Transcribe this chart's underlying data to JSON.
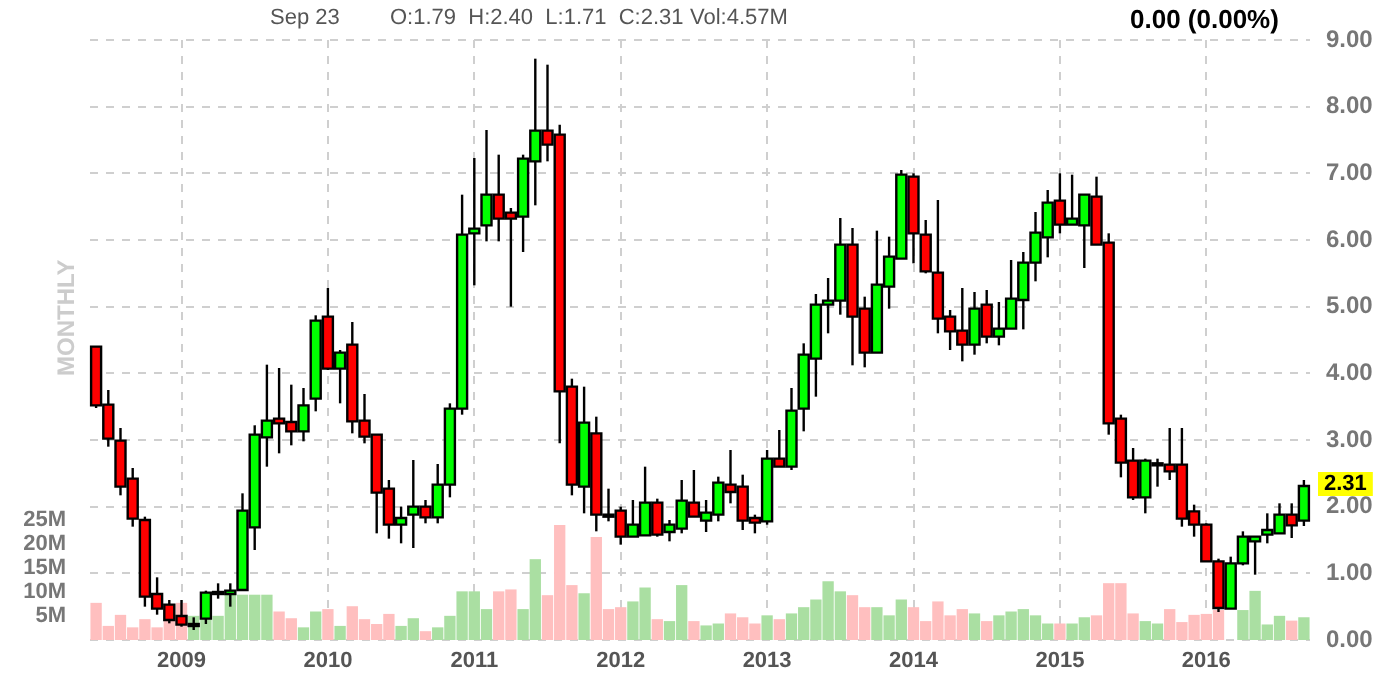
{
  "chart_data": {
    "type": "candlestick",
    "categories": [
      null,
      null,
      null,
      null,
      null,
      null,
      null,
      "2009",
      null,
      null,
      null,
      null,
      null,
      null,
      null,
      null,
      null,
      null,
      null,
      "2010",
      null,
      null,
      null,
      null,
      null,
      null,
      null,
      null,
      null,
      null,
      null,
      "2011",
      null,
      null,
      null,
      null,
      null,
      null,
      null,
      null,
      null,
      null,
      null,
      "2012",
      null,
      null,
      null,
      null,
      null,
      null,
      null,
      null,
      null,
      null,
      null,
      "2013",
      null,
      null,
      null,
      null,
      null,
      null,
      null,
      null,
      null,
      null,
      null,
      "2014",
      null,
      null,
      null,
      null,
      null,
      null,
      null,
      null,
      null,
      null,
      null,
      "2015",
      null,
      null,
      null,
      null,
      null,
      null,
      null,
      null,
      null,
      null,
      null,
      "2016",
      null,
      null,
      null,
      null,
      null,
      null,
      null,
      null
    ],
    "ohlc": [
      [
        4.4,
        4.4,
        3.48,
        3.52
      ],
      [
        3.53,
        3.75,
        2.9,
        3.02
      ],
      [
        2.99,
        3.18,
        2.17,
        2.3
      ],
      [
        2.42,
        2.58,
        1.7,
        1.82
      ],
      [
        1.8,
        1.85,
        0.5,
        0.65
      ],
      [
        0.69,
        0.94,
        0.38,
        0.47
      ],
      [
        0.53,
        0.6,
        0.25,
        0.3
      ],
      [
        0.36,
        0.6,
        0.2,
        0.23
      ],
      [
        0.24,
        0.34,
        0.15,
        0.24
      ],
      [
        0.32,
        0.74,
        0.24,
        0.71
      ],
      [
        0.71,
        0.85,
        0.62,
        0.72
      ],
      [
        0.69,
        0.85,
        0.5,
        0.74
      ],
      [
        0.75,
        2.2,
        0.74,
        1.94
      ],
      [
        1.69,
        3.22,
        1.35,
        3.08
      ],
      [
        3.04,
        4.13,
        2.6,
        3.29
      ],
      [
        3.32,
        4.08,
        2.8,
        3.25
      ],
      [
        3.27,
        3.83,
        2.92,
        3.13
      ],
      [
        3.13,
        3.78,
        2.98,
        3.52
      ],
      [
        3.62,
        4.87,
        3.43,
        4.79
      ],
      [
        4.85,
        5.28,
        4.05,
        4.07
      ],
      [
        4.07,
        4.35,
        3.55,
        4.31
      ],
      [
        4.43,
        4.77,
        3.1,
        3.28
      ],
      [
        3.29,
        3.69,
        2.95,
        3.05
      ],
      [
        3.08,
        3.08,
        1.6,
        2.21
      ],
      [
        2.27,
        2.4,
        1.52,
        1.73
      ],
      [
        1.73,
        2.0,
        1.45,
        1.83
      ],
      [
        1.88,
        2.7,
        1.38,
        2.0
      ],
      [
        2.0,
        2.1,
        1.75,
        1.84
      ],
      [
        1.84,
        2.64,
        1.75,
        2.33
      ],
      [
        2.33,
        3.55,
        2.14,
        3.47
      ],
      [
        3.47,
        6.68,
        3.38,
        6.08
      ],
      [
        6.1,
        7.23,
        5.32,
        6.17
      ],
      [
        6.22,
        7.65,
        5.98,
        6.68
      ],
      [
        6.68,
        7.28,
        5.98,
        6.32
      ],
      [
        6.41,
        6.48,
        5.0,
        6.32
      ],
      [
        6.35,
        7.28,
        5.82,
        7.22
      ],
      [
        7.18,
        8.72,
        6.52,
        7.64
      ],
      [
        7.64,
        8.63,
        7.18,
        7.43
      ],
      [
        7.58,
        7.73,
        2.95,
        3.73
      ],
      [
        3.8,
        3.92,
        2.17,
        2.33
      ],
      [
        2.3,
        3.8,
        1.9,
        3.26
      ],
      [
        3.1,
        3.35,
        1.63,
        1.88
      ],
      [
        1.88,
        2.27,
        1.78,
        1.87
      ],
      [
        1.94,
        2.0,
        1.43,
        1.55
      ],
      [
        1.55,
        2.1,
        1.55,
        1.73
      ],
      [
        1.57,
        2.6,
        1.57,
        2.06
      ],
      [
        2.06,
        2.12,
        1.55,
        1.58
      ],
      [
        1.62,
        1.8,
        1.48,
        1.73
      ],
      [
        1.67,
        2.4,
        1.6,
        2.09
      ],
      [
        2.06,
        2.55,
        1.85,
        1.85
      ],
      [
        1.79,
        2.1,
        1.62,
        1.91
      ],
      [
        1.88,
        2.45,
        1.78,
        2.36
      ],
      [
        2.33,
        2.85,
        2.05,
        2.22
      ],
      [
        2.3,
        2.48,
        1.65,
        1.79
      ],
      [
        1.83,
        1.88,
        1.6,
        1.76
      ],
      [
        1.78,
        2.85,
        1.73,
        2.72
      ],
      [
        2.72,
        3.15,
        2.6,
        2.6
      ],
      [
        2.6,
        3.78,
        2.55,
        3.44
      ],
      [
        3.47,
        4.45,
        3.13,
        4.28
      ],
      [
        4.22,
        5.19,
        3.65,
        5.03
      ],
      [
        5.03,
        5.43,
        4.6,
        5.09
      ],
      [
        5.09,
        6.33,
        4.88,
        5.93
      ],
      [
        5.93,
        6.18,
        4.12,
        4.85
      ],
      [
        4.97,
        5.15,
        4.09,
        4.31
      ],
      [
        4.31,
        6.14,
        4.31,
        5.33
      ],
      [
        5.3,
        6.05,
        4.97,
        5.75
      ],
      [
        5.72,
        7.05,
        5.72,
        6.98
      ],
      [
        6.95,
        7.0,
        5.65,
        6.1
      ],
      [
        6.08,
        6.3,
        5.5,
        5.53
      ],
      [
        5.51,
        6.6,
        4.6,
        4.82
      ],
      [
        4.85,
        4.95,
        4.35,
        4.63
      ],
      [
        4.64,
        5.28,
        4.18,
        4.43
      ],
      [
        4.43,
        5.22,
        4.28,
        4.97
      ],
      [
        5.03,
        5.25,
        4.45,
        4.55
      ],
      [
        4.55,
        5.07,
        4.42,
        4.67
      ],
      [
        4.67,
        5.7,
        4.67,
        5.12
      ],
      [
        5.1,
        5.82,
        4.66,
        5.66
      ],
      [
        5.66,
        6.42,
        5.38,
        6.11
      ],
      [
        6.04,
        6.75,
        5.74,
        6.56
      ],
      [
        6.59,
        7.0,
        6.1,
        6.23
      ],
      [
        6.23,
        6.98,
        6.23,
        6.32
      ],
      [
        6.22,
        6.68,
        5.58,
        6.68
      ],
      [
        6.65,
        6.95,
        5.93,
        5.93
      ],
      [
        5.96,
        6.1,
        3.08,
        3.25
      ],
      [
        3.32,
        3.38,
        2.44,
        2.66
      ],
      [
        2.69,
        2.88,
        2.1,
        2.14
      ],
      [
        2.14,
        2.72,
        1.9,
        2.69
      ],
      [
        2.63,
        2.72,
        2.3,
        2.65
      ],
      [
        2.63,
        3.18,
        2.4,
        2.53
      ],
      [
        2.63,
        3.18,
        1.7,
        1.82
      ],
      [
        1.93,
        2.03,
        1.55,
        1.73
      ],
      [
        1.73,
        1.75,
        1.18,
        1.18
      ],
      [
        1.18,
        1.22,
        0.42,
        0.48
      ],
      [
        0.47,
        1.25,
        0.47,
        1.15
      ],
      [
        1.15,
        1.63,
        1.12,
        1.55
      ],
      [
        1.48,
        1.55,
        0.98,
        1.55
      ],
      [
        1.58,
        1.9,
        1.45,
        1.65
      ],
      [
        1.6,
        2.05,
        1.6,
        1.88
      ],
      [
        1.88,
        2.05,
        1.53,
        1.72
      ],
      [
        1.79,
        2.4,
        1.71,
        2.31
      ]
    ],
    "colors": [
      "#ff0000",
      "#ff0000",
      "#ff0000",
      "#ff0000",
      "#ff0000",
      "#ff0000",
      "#ff0000",
      "#ff0000",
      "#00ff00",
      "#00ff00",
      "#00ff00",
      "#00ff00",
      "#00ff00",
      "#00ff00",
      "#00ff00",
      "#ff0000",
      "#ff0000",
      "#00ff00",
      "#00ff00",
      "#ff0000",
      "#00ff00",
      "#ff0000",
      "#ff0000",
      "#ff0000",
      "#ff0000",
      "#00ff00",
      "#00ff00",
      "#ff0000",
      "#00ff00",
      "#00ff00",
      "#00ff00",
      "#00ff00",
      "#00ff00",
      "#ff0000",
      "#ff0000",
      "#00ff00",
      "#00ff00",
      "#ff0000",
      "#ff0000",
      "#ff0000",
      "#00ff00",
      "#ff0000",
      "#ff0000",
      "#ff0000",
      "#00ff00",
      "#00ff00",
      "#ff0000",
      "#00ff00",
      "#00ff00",
      "#ff0000",
      "#00ff00",
      "#00ff00",
      "#ff0000",
      "#ff0000",
      "#ff0000",
      "#00ff00",
      "#ff0000",
      "#00ff00",
      "#00ff00",
      "#00ff00",
      "#00ff00",
      "#00ff00",
      "#ff0000",
      "#ff0000",
      "#00ff00",
      "#00ff00",
      "#00ff00",
      "#ff0000",
      "#ff0000",
      "#ff0000",
      "#ff0000",
      "#ff0000",
      "#00ff00",
      "#ff0000",
      "#00ff00",
      "#00ff00",
      "#00ff00",
      "#00ff00",
      "#00ff00",
      "#ff0000",
      "#00ff00",
      "#00ff00",
      "#ff0000",
      "#ff0000",
      "#ff0000",
      "#ff0000",
      "#00ff00",
      "#00ff00",
      "#ff0000",
      "#ff0000",
      "#ff0000",
      "#ff0000",
      "#ff0000",
      "#00ff00",
      "#00ff00",
      "#00ff00",
      "#00ff00",
      "#00ff00",
      "#ff0000",
      "#00ff00"
    ],
    "series": [
      {
        "type": "bar",
        "axis": "y2",
        "values": [
          7.6,
          2.8,
          5.1,
          2.5,
          4.2,
          2.5,
          4.2,
          7.6,
          4.9,
          5.3,
          4.9,
          10,
          9.3,
          9.3,
          9.3,
          5.8,
          4.4,
          2.5,
          5.8,
          6.3,
          2.8,
          6.9,
          4.2,
          3.2,
          5.3,
          2.8,
          4.4,
          1.7,
          2.5,
          4.9,
          10,
          10,
          6.3,
          10,
          10.4,
          6.3,
          16.7,
          9.2,
          23.8,
          11.3,
          9.6,
          21.3,
          6.3,
          6.7,
          7.9,
          10.8,
          4.2,
          3.8,
          11.3,
          3.8,
          2.9,
          3.3,
          5.4,
          4.6,
          3.3,
          5.0,
          4.2,
          5.4,
          6.7,
          8.3,
          12.1,
          10,
          9.2,
          6.7,
          6.7,
          5.0,
          8.3,
          6.7,
          3.8,
          7.9,
          5.0,
          6.3,
          5.4,
          3.8,
          5.0,
          5.8,
          6.3,
          5.0,
          3.3,
          3.3,
          3.3,
          4.6,
          5.0,
          11.7,
          11.7,
          5.4,
          3.8,
          3.3,
          6.3,
          3.6,
          5.1,
          5.3,
          6.1,
          null,
          6.1,
          10.1,
          3.1,
          4.9,
          3.9,
          4.6
        ],
        "colors": [
          "#ffbfbf",
          "#ffbfbf",
          "#ffbfbf",
          "#ffbfbf",
          "#ffbfbf",
          "#ffbfbf",
          "#ffbfbf",
          "#ffbfbf",
          "#aadfa2",
          "#aadfa2",
          "#aadfa2",
          "#aadfa2",
          "#aadfa2",
          "#aadfa2",
          "#aadfa2",
          "#ffbfbf",
          "#ffbfbf",
          "#aadfa2",
          "#aadfa2",
          "#ffbfbf",
          "#aadfa2",
          "#ffbfbf",
          "#ffbfbf",
          "#ffbfbf",
          "#ffbfbf",
          "#aadfa2",
          "#aadfa2",
          "#ffbfbf",
          "#aadfa2",
          "#aadfa2",
          "#aadfa2",
          "#aadfa2",
          "#aadfa2",
          "#ffbfbf",
          "#ffbfbf",
          "#aadfa2",
          "#aadfa2",
          "#ffbfbf",
          "#ffbfbf",
          "#ffbfbf",
          "#aadfa2",
          "#ffbfbf",
          "#ffbfbf",
          "#ffbfbf",
          "#aadfa2",
          "#aadfa2",
          "#ffbfbf",
          "#aadfa2",
          "#aadfa2",
          "#ffbfbf",
          "#aadfa2",
          "#aadfa2",
          "#ffbfbf",
          "#ffbfbf",
          "#ffbfbf",
          "#aadfa2",
          "#ffbfbf",
          "#aadfa2",
          "#aadfa2",
          "#aadfa2",
          "#aadfa2",
          "#aadfa2",
          "#ffbfbf",
          "#ffbfbf",
          "#aadfa2",
          "#aadfa2",
          "#aadfa2",
          "#ffbfbf",
          "#ffbfbf",
          "#ffbfbf",
          "#ffbfbf",
          "#ffbfbf",
          "#aadfa2",
          "#ffbfbf",
          "#aadfa2",
          "#aadfa2",
          "#aadfa2",
          "#aadfa2",
          "#aadfa2",
          "#ffbfbf",
          "#aadfa2",
          "#aadfa2",
          "#ffbfbf",
          "#ffbfbf",
          "#ffbfbf",
          "#ffbfbf",
          "#aadfa2",
          "#aadfa2",
          "#ffbfbf",
          "#ffbfbf",
          "#ffbfbf",
          "#ffbfbf",
          "#ffbfbf",
          "#aadfa2",
          "#aadfa2",
          "#aadfa2",
          "#aadfa2",
          "#aadfa2",
          "#ffbfbf",
          "#aadfa2"
        ]
      }
    ],
    "ylim": [
      0,
      9
    ],
    "yticks": [
      {
        "value": 0,
        "label": "0.00"
      },
      {
        "value": 1,
        "label": "1.00"
      },
      {
        "value": 2,
        "label": "2.00"
      },
      {
        "value": 3,
        "label": "3.00"
      },
      {
        "value": 4,
        "label": "4.00"
      },
      {
        "value": 5,
        "label": "5.00"
      },
      {
        "value": 6,
        "label": "6.00"
      },
      {
        "value": 7,
        "label": "7.00"
      },
      {
        "value": 8,
        "label": "8.00"
      },
      {
        "value": 9,
        "label": "9.00"
      }
    ],
    "y2lim": [
      0,
      125
    ],
    "y2ticks": [
      {
        "value": 5,
        "label": "5M"
      },
      {
        "value": 10,
        "label": "10M"
      },
      {
        "value": 15,
        "label": "15M"
      },
      {
        "value": 20,
        "label": "20M"
      },
      {
        "value": 25,
        "label": "25M"
      }
    ],
    "grid": true,
    "legend": false,
    "annotations": [
      "Sep 23",
      "O:1.79  H:2.40  L:1.71  C:2.31",
      "Vol:4.57M",
      "0.00 (0.00%)",
      "MONTHLY",
      "2.31"
    ]
  }
}
